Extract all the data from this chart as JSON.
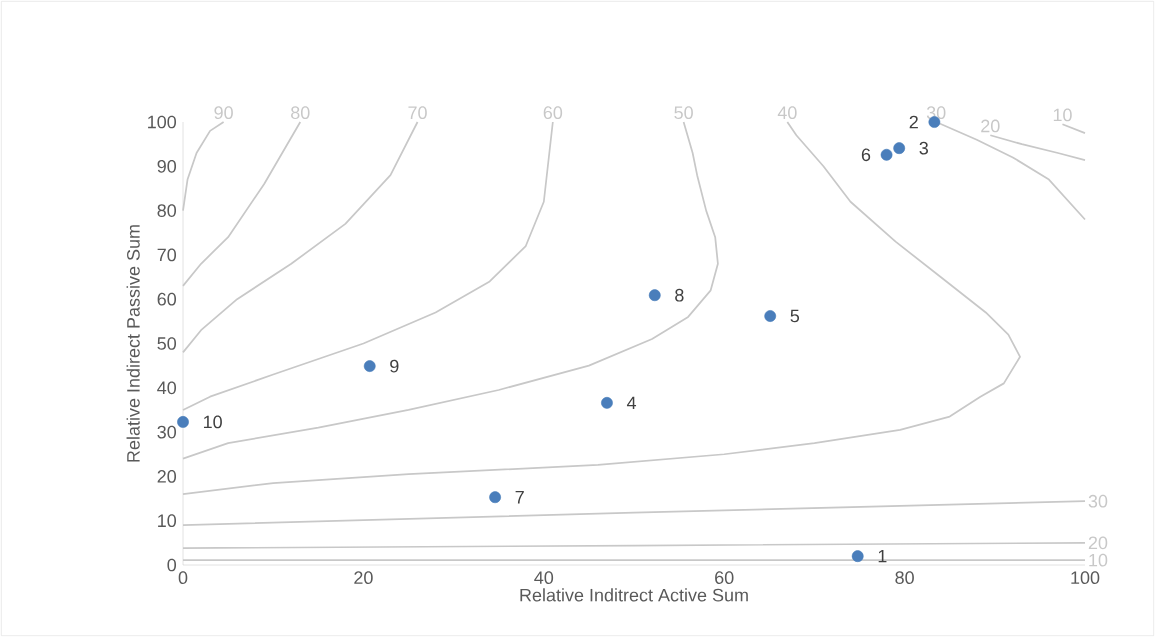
{
  "chart_data": {
    "type": "scatter",
    "xlabel": "Relative Inditrect Active Sum",
    "ylabel": "Relative Indirect Passive Sum",
    "xlim": [
      0,
      100
    ],
    "ylim": [
      0,
      100
    ],
    "xticks": [
      0,
      20,
      40,
      60,
      80,
      100
    ],
    "yticks": [
      0,
      10,
      20,
      30,
      40,
      50,
      60,
      70,
      80,
      90,
      100
    ],
    "series": [
      {
        "marker": "circle",
        "color": "#4a7ebb",
        "x": [
          74.8,
          83.3,
          79.4,
          47.0,
          65.1,
          78.0,
          34.6,
          52.3,
          20.7,
          0
        ],
        "values": [
          2.0,
          100,
          94.1,
          36.6,
          56.2,
          92.6,
          15.3,
          60.9,
          44.9,
          32.3
        ]
      },
      {
        "name": "90",
        "type": "line",
        "color": "#c8c8c8",
        "x": [
          0,
          0.5,
          1.5,
          3,
          4.5
        ],
        "values": [
          80,
          87,
          93,
          98,
          100
        ]
      },
      {
        "name": "80",
        "type": "line",
        "color": "#c8c8c8",
        "x": [
          0,
          2,
          5,
          9,
          13
        ],
        "values": [
          63,
          68,
          74,
          86,
          100
        ]
      },
      {
        "name": "70",
        "type": "line",
        "color": "#c8c8c8",
        "x": [
          0,
          2,
          6,
          12,
          18,
          23,
          26
        ],
        "values": [
          48,
          53,
          60,
          68,
          77,
          88,
          100
        ]
      },
      {
        "name": "60",
        "type": "line",
        "color": "#c8c8c8",
        "x": [
          0,
          3,
          10,
          20,
          28,
          34,
          38,
          40,
          41
        ],
        "values": [
          35,
          38,
          43,
          50,
          57,
          64,
          72,
          82,
          100
        ]
      },
      {
        "name": "50",
        "type": "line",
        "color": "#c8c8c8",
        "x": [
          0,
          5,
          15,
          25,
          35,
          45,
          52,
          56,
          58.5,
          59.3,
          59,
          58,
          57,
          56.5,
          55.5
        ],
        "values": [
          24,
          27.5,
          31,
          35,
          39.5,
          45,
          51,
          56,
          62,
          68,
          74,
          80,
          88,
          93,
          100
        ]
      },
      {
        "name": "40",
        "type": "line",
        "color": "#c8c8c8",
        "x": [
          0,
          10,
          25,
          46,
          60,
          70,
          79.5,
          85,
          88.4,
          91,
          92.8,
          91.5,
          89,
          84,
          79,
          74,
          71,
          68,
          67
        ],
        "values": [
          16,
          18.5,
          20.5,
          22.6,
          25,
          27.5,
          30.5,
          33.5,
          38,
          41,
          47,
          52,
          57,
          65,
          73,
          82,
          90,
          97,
          100
        ]
      },
      {
        "name": "30",
        "type": "line",
        "color": "#c8c8c8",
        "x": [
          100,
          96,
          92,
          88,
          83.5
        ],
        "values": [
          78,
          87,
          92,
          96,
          100
        ]
      },
      {
        "name": "20",
        "type": "line",
        "color": "#c8c8c8",
        "x": [
          100,
          97,
          93,
          89.5
        ],
        "values": [
          91.4,
          93,
          95,
          97
        ]
      },
      {
        "name": "10",
        "type": "line",
        "color": "#c8c8c8",
        "x": [
          100,
          97.5
        ],
        "values": [
          97.5,
          99.5
        ]
      },
      {
        "name": "30",
        "type": "line",
        "color": "#c8c8c8",
        "x": [
          0,
          50,
          100
        ],
        "values": [
          9,
          11.8,
          14.4
        ]
      },
      {
        "name": "20",
        "type": "line",
        "color": "#c8c8c8",
        "x": [
          0,
          50,
          100
        ],
        "values": [
          3.8,
          4.4,
          5.0
        ]
      },
      {
        "name": "10",
        "type": "line",
        "color": "#c8c8c8",
        "x": [
          0,
          50,
          100
        ],
        "values": [
          1.1,
          1.1,
          1.1
        ]
      }
    ],
    "annotations": [
      {
        "text": "1",
        "x": 74.8,
        "y": 2.0
      },
      {
        "text": "2",
        "x": 83.3,
        "y": 100
      },
      {
        "text": "3",
        "x": 79.4,
        "y": 94.1
      },
      {
        "text": "4",
        "x": 47.0,
        "y": 36.6
      },
      {
        "text": "5",
        "x": 65.1,
        "y": 56.2
      },
      {
        "text": "6",
        "x": 78.0,
        "y": 92.6
      },
      {
        "text": "7",
        "x": 34.6,
        "y": 15.3
      },
      {
        "text": "8",
        "x": 52.3,
        "y": 60.9
      },
      {
        "text": "9",
        "x": 20.7,
        "y": 44.9
      },
      {
        "text": "10",
        "x": 0,
        "y": 32.3
      }
    ]
  }
}
